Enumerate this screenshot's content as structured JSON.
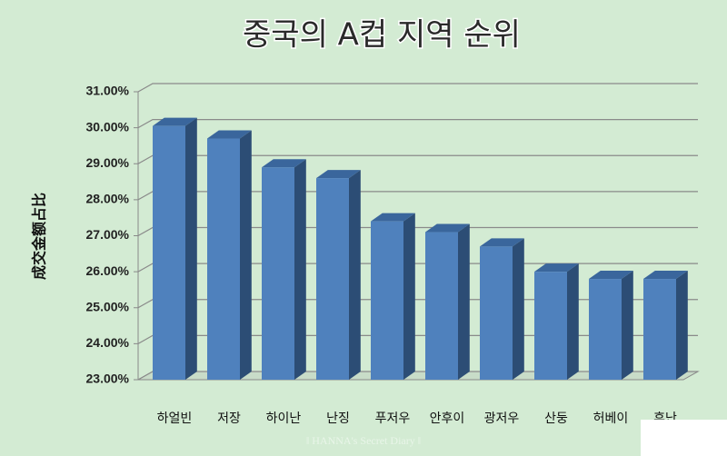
{
  "chart_data": {
    "type": "bar3d",
    "title": "중국의 A컵 지역 순위",
    "y_label": "成交金额占比",
    "categories": [
      "하얼빈",
      "저장",
      "하이난",
      "난징",
      "푸저우",
      "안후이",
      "광저우",
      "산둥",
      "허베이",
      "후난"
    ],
    "values": [
      30.05,
      29.7,
      28.9,
      28.6,
      27.4,
      27.1,
      26.7,
      26.0,
      25.8,
      25.8
    ],
    "color": "#4f81bd",
    "ylim": [
      23,
      31
    ],
    "yticks": [
      {
        "value": 23,
        "label": "23.00%"
      },
      {
        "value": 24,
        "label": "24.00%"
      },
      {
        "value": 25,
        "label": "25.00%"
      },
      {
        "value": 26,
        "label": "26.00%"
      },
      {
        "value": 27,
        "label": "27.00%"
      },
      {
        "value": 28,
        "label": "28.00%"
      },
      {
        "value": 29,
        "label": "29.00%"
      },
      {
        "value": 30,
        "label": "30.00%"
      },
      {
        "value": 31,
        "label": "31.00%"
      }
    ],
    "grid": true,
    "watermark": "‖ HANNA's Secret Diary ‖"
  }
}
